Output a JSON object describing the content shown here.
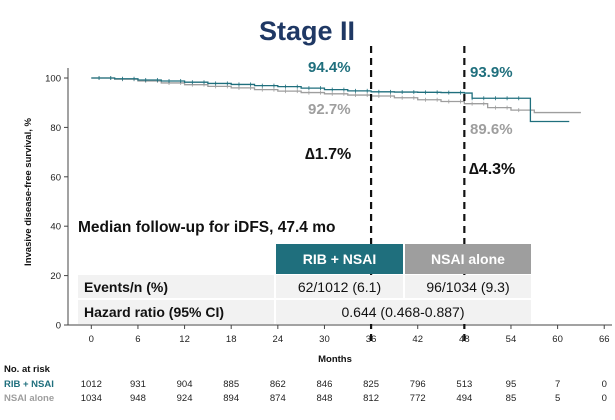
{
  "title": "Stage II",
  "colors": {
    "rib": "#1f6f7d",
    "nsai": "#9e9e9e",
    "title": "#1f3864",
    "table_bg": "#f2f2f2"
  },
  "chart_data": {
    "type": "line",
    "xlabel": "Months",
    "ylabel": "Invasive disease-free survival, %",
    "xlim": [
      -3,
      67
    ],
    "ylim": [
      0,
      100
    ],
    "xticks": [
      0,
      6,
      12,
      18,
      24,
      30,
      36,
      42,
      48,
      54,
      60,
      66
    ],
    "yticks": [
      0,
      20,
      40,
      60,
      80,
      100
    ],
    "series": [
      {
        "name": "RIB + NSAI",
        "color": "#1f6f7d",
        "x": [
          0,
          3,
          6,
          9,
          12,
          15,
          18,
          21,
          24,
          27,
          30,
          33,
          36,
          39,
          42,
          45,
          48,
          49,
          51,
          54,
          56.5,
          56.5,
          61.5
        ],
        "y": [
          100,
          99.7,
          99.2,
          98.8,
          98.3,
          97.8,
          97.4,
          96.9,
          96.5,
          95.9,
          95.3,
          94.8,
          94.4,
          94.3,
          94.2,
          94.1,
          93.9,
          91.8,
          91.8,
          91.8,
          91.8,
          82.4,
          82.4
        ]
      },
      {
        "name": "NSAI alone",
        "color": "#9e9e9e",
        "x": [
          0,
          3,
          6,
          9,
          12,
          15,
          18,
          21,
          24,
          27,
          30,
          33,
          36,
          39,
          42,
          45,
          48,
          51,
          54,
          57,
          60,
          63
        ],
        "y": [
          100,
          99.5,
          98.8,
          98.0,
          97.3,
          96.6,
          96.0,
          95.3,
          94.7,
          94.1,
          93.6,
          93.1,
          92.7,
          92.0,
          91.2,
          90.5,
          89.6,
          88.0,
          87.0,
          86.0,
          86.0,
          86.0
        ]
      }
    ],
    "reference_lines": [
      36,
      48
    ],
    "annotations": {
      "rib_36": "94.4%",
      "nsai_36": "92.7%",
      "rib_48": "93.9%",
      "nsai_48": "89.6%",
      "delta_36": "∆1.7%",
      "delta_48": "∆4.3%"
    }
  },
  "follow_up": "Median follow-up for iDFS, 47.4 mo",
  "table": {
    "header_rib": "RIB + NSAI",
    "header_nsai": "NSAI alone",
    "row1_label": "Events/n (%)",
    "row1_rib": "62/1012 (6.1)",
    "row1_nsai": "96/1034 (9.3)",
    "row2_label": "Hazard ratio (95% CI)",
    "row2_value": "0.644 (0.468-0.887)"
  },
  "at_risk": {
    "title": "No. at risk",
    "rib_label": "RIB + NSAI",
    "nsai_label": "NSAI alone",
    "rib": [
      "1012",
      "931",
      "904",
      "885",
      "862",
      "846",
      "825",
      "796",
      "513",
      "95",
      "7",
      "0"
    ],
    "nsai": [
      "1034",
      "948",
      "924",
      "894",
      "874",
      "848",
      "812",
      "772",
      "494",
      "85",
      "5",
      "0"
    ]
  }
}
